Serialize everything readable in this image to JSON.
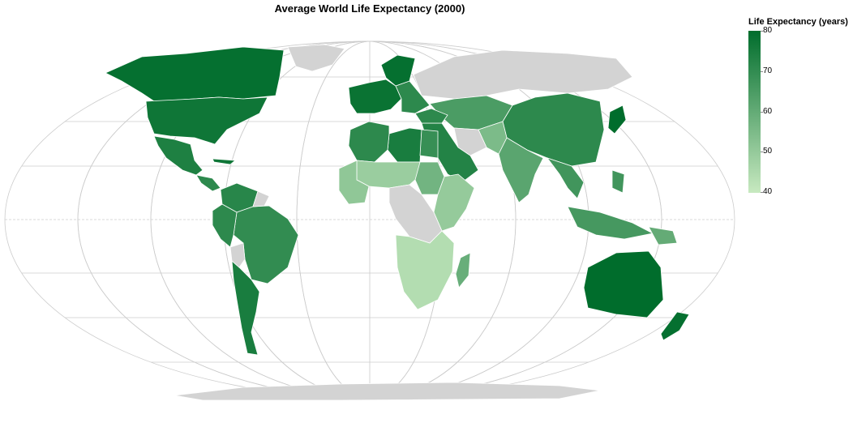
{
  "chart_data": {
    "type": "choropleth-map",
    "title": "Average World Life Expectancy (2000)",
    "projection": "natural-earth (world)",
    "legend": {
      "title": "Life Expectancy (years)",
      "position": "top-right",
      "min": 40,
      "max": 80,
      "ticks": [
        "80",
        "70",
        "60",
        "50",
        "40"
      ],
      "color_low": "#c7e9c0",
      "color_high": "#006d2c",
      "no_data_color": "#d3d3d3"
    },
    "graticule": true,
    "regions": [
      {
        "name": "Canada",
        "value": 79
      },
      {
        "name": "United States",
        "value": 77
      },
      {
        "name": "Mexico",
        "value": 74
      },
      {
        "name": "Central America",
        "value": 71
      },
      {
        "name": "Cuba",
        "value": 77
      },
      {
        "name": "Colombia / Venezuela",
        "value": 72
      },
      {
        "name": "Brazil",
        "value": 70
      },
      {
        "name": "Peru / Ecuador",
        "value": 71
      },
      {
        "name": "Chile / Argentina",
        "value": 75
      },
      {
        "name": "Bolivia",
        "value": null
      },
      {
        "name": "Guyana region",
        "value": null
      },
      {
        "name": "Greenland",
        "value": null
      },
      {
        "name": "Russia",
        "value": null
      },
      {
        "name": "Western Europe",
        "value": 78
      },
      {
        "name": "Eastern Europe",
        "value": 71
      },
      {
        "name": "Scandinavia",
        "value": 79
      },
      {
        "name": "Kazakhstan / Central Asia",
        "value": 65
      },
      {
        "name": "Mongolia / China",
        "value": 71
      },
      {
        "name": "Japan",
        "value": 81
      },
      {
        "name": "India",
        "value": 62
      },
      {
        "name": "Pakistan / Afghanistan",
        "value": 55
      },
      {
        "name": "Iran",
        "value": null
      },
      {
        "name": "Middle East",
        "value": 73
      },
      {
        "name": "Turkey",
        "value": 71
      },
      {
        "name": "Libya",
        "value": 75
      },
      {
        "name": "North Africa",
        "value": 71
      },
      {
        "name": "Egypt",
        "value": 69
      },
      {
        "name": "Sahel",
        "value": 49
      },
      {
        "name": "West Africa",
        "value": 51
      },
      {
        "name": "Sudan",
        "value": 57
      },
      {
        "name": "East Africa",
        "value": 50
      },
      {
        "name": "Central Africa",
        "value": null
      },
      {
        "name": "Southern Africa",
        "value": 44
      },
      {
        "name": "Madagascar",
        "value": 59
      },
      {
        "name": "Southeast Asia",
        "value": 67
      },
      {
        "name": "Indonesia",
        "value": 66
      },
      {
        "name": "Philippines",
        "value": 67
      },
      {
        "name": "Papua New Guinea",
        "value": 60
      },
      {
        "name": "Australia",
        "value": 80
      },
      {
        "name": "New Zealand",
        "value": 79
      },
      {
        "name": "Antarctica",
        "value": null
      }
    ]
  }
}
